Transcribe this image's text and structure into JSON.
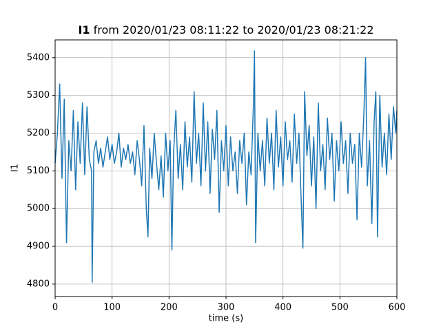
{
  "chart_data": {
    "type": "line",
    "title": [
      "I1",
      " from 2020/01/23 08:11:22 to 2020/01/23 08:21:22"
    ],
    "x_label": "time (s)",
    "y_label": "I1",
    "color": "#1f77b4",
    "grid": true,
    "xlim": [
      0,
      600
    ],
    "xticks": [
      0,
      100,
      200,
      300,
      400,
      500,
      600
    ],
    "ylim": [
      4767,
      5447
    ],
    "yticks": [
      4800,
      4900,
      5000,
      5100,
      5200,
      5300,
      5400
    ],
    "x": [
      0,
      4,
      8,
      12,
      16,
      20,
      24,
      28,
      32,
      36,
      40,
      44,
      48,
      52,
      56,
      60,
      64,
      65,
      68,
      72,
      76,
      80,
      84,
      88,
      92,
      96,
      100,
      104,
      108,
      112,
      116,
      120,
      124,
      128,
      132,
      136,
      140,
      144,
      148,
      152,
      156,
      160,
      163,
      166,
      170,
      174,
      178,
      182,
      186,
      190,
      194,
      198,
      202,
      205,
      208,
      212,
      216,
      220,
      224,
      228,
      232,
      236,
      240,
      244,
      248,
      252,
      256,
      260,
      264,
      268,
      272,
      276,
      280,
      284,
      288,
      292,
      296,
      300,
      304,
      308,
      312,
      316,
      320,
      324,
      328,
      332,
      336,
      340,
      344,
      348,
      350,
      352,
      356,
      360,
      364,
      368,
      372,
      376,
      380,
      384,
      388,
      392,
      396,
      400,
      404,
      408,
      412,
      416,
      420,
      424,
      428,
      432,
      435,
      438,
      442,
      446,
      450,
      454,
      458,
      462,
      466,
      470,
      474,
      478,
      482,
      486,
      490,
      494,
      498,
      502,
      506,
      510,
      514,
      518,
      522,
      526,
      530,
      534,
      538,
      542,
      545,
      548,
      552,
      556,
      560,
      563,
      566,
      570,
      574,
      578,
      582,
      586,
      590,
      594,
      598,
      600
    ],
    "values": [
      5120,
      5200,
      5330,
      5080,
      5290,
      4910,
      5180,
      5100,
      5260,
      5050,
      5230,
      5120,
      5280,
      5090,
      5270,
      5130,
      5100,
      4805,
      5150,
      5180,
      5120,
      5160,
      5110,
      5150,
      5190,
      5130,
      5170,
      5120,
      5150,
      5200,
      5110,
      5160,
      5130,
      5170,
      5120,
      5150,
      5090,
      5180,
      5130,
      5060,
      5220,
      5000,
      4925,
      5160,
      5080,
      5200,
      5120,
      5050,
      5140,
      5030,
      5200,
      5100,
      5180,
      4890,
      5150,
      5260,
      5080,
      5170,
      5050,
      5230,
      5110,
      5190,
      5070,
      5310,
      5120,
      5200,
      5060,
      5280,
      5100,
      5230,
      5040,
      5210,
      5130,
      5260,
      4990,
      5180,
      5100,
      5220,
      5060,
      5190,
      5100,
      5150,
      5040,
      5180,
      5120,
      5200,
      5010,
      5150,
      5090,
      5270,
      5418,
      4910,
      5200,
      5100,
      5180,
      5060,
      5240,
      5120,
      5200,
      5050,
      5260,
      5110,
      5190,
      5060,
      5230,
      5130,
      5180,
      5070,
      5250,
      5120,
      5200,
      5020,
      4895,
      5310,
      5140,
      5220,
      5060,
      5190,
      5000,
      5280,
      5100,
      5170,
      5050,
      5240,
      5130,
      5200,
      5020,
      5180,
      5100,
      5230,
      5120,
      5180,
      5040,
      5200,
      5120,
      5170,
      4970,
      5200,
      5110,
      5250,
      5400,
      5060,
      5180,
      4960,
      5230,
      5310,
      4925,
      5300,
      5110,
      5200,
      5090,
      5250,
      5130,
      5270,
      5200,
      5260
    ]
  }
}
